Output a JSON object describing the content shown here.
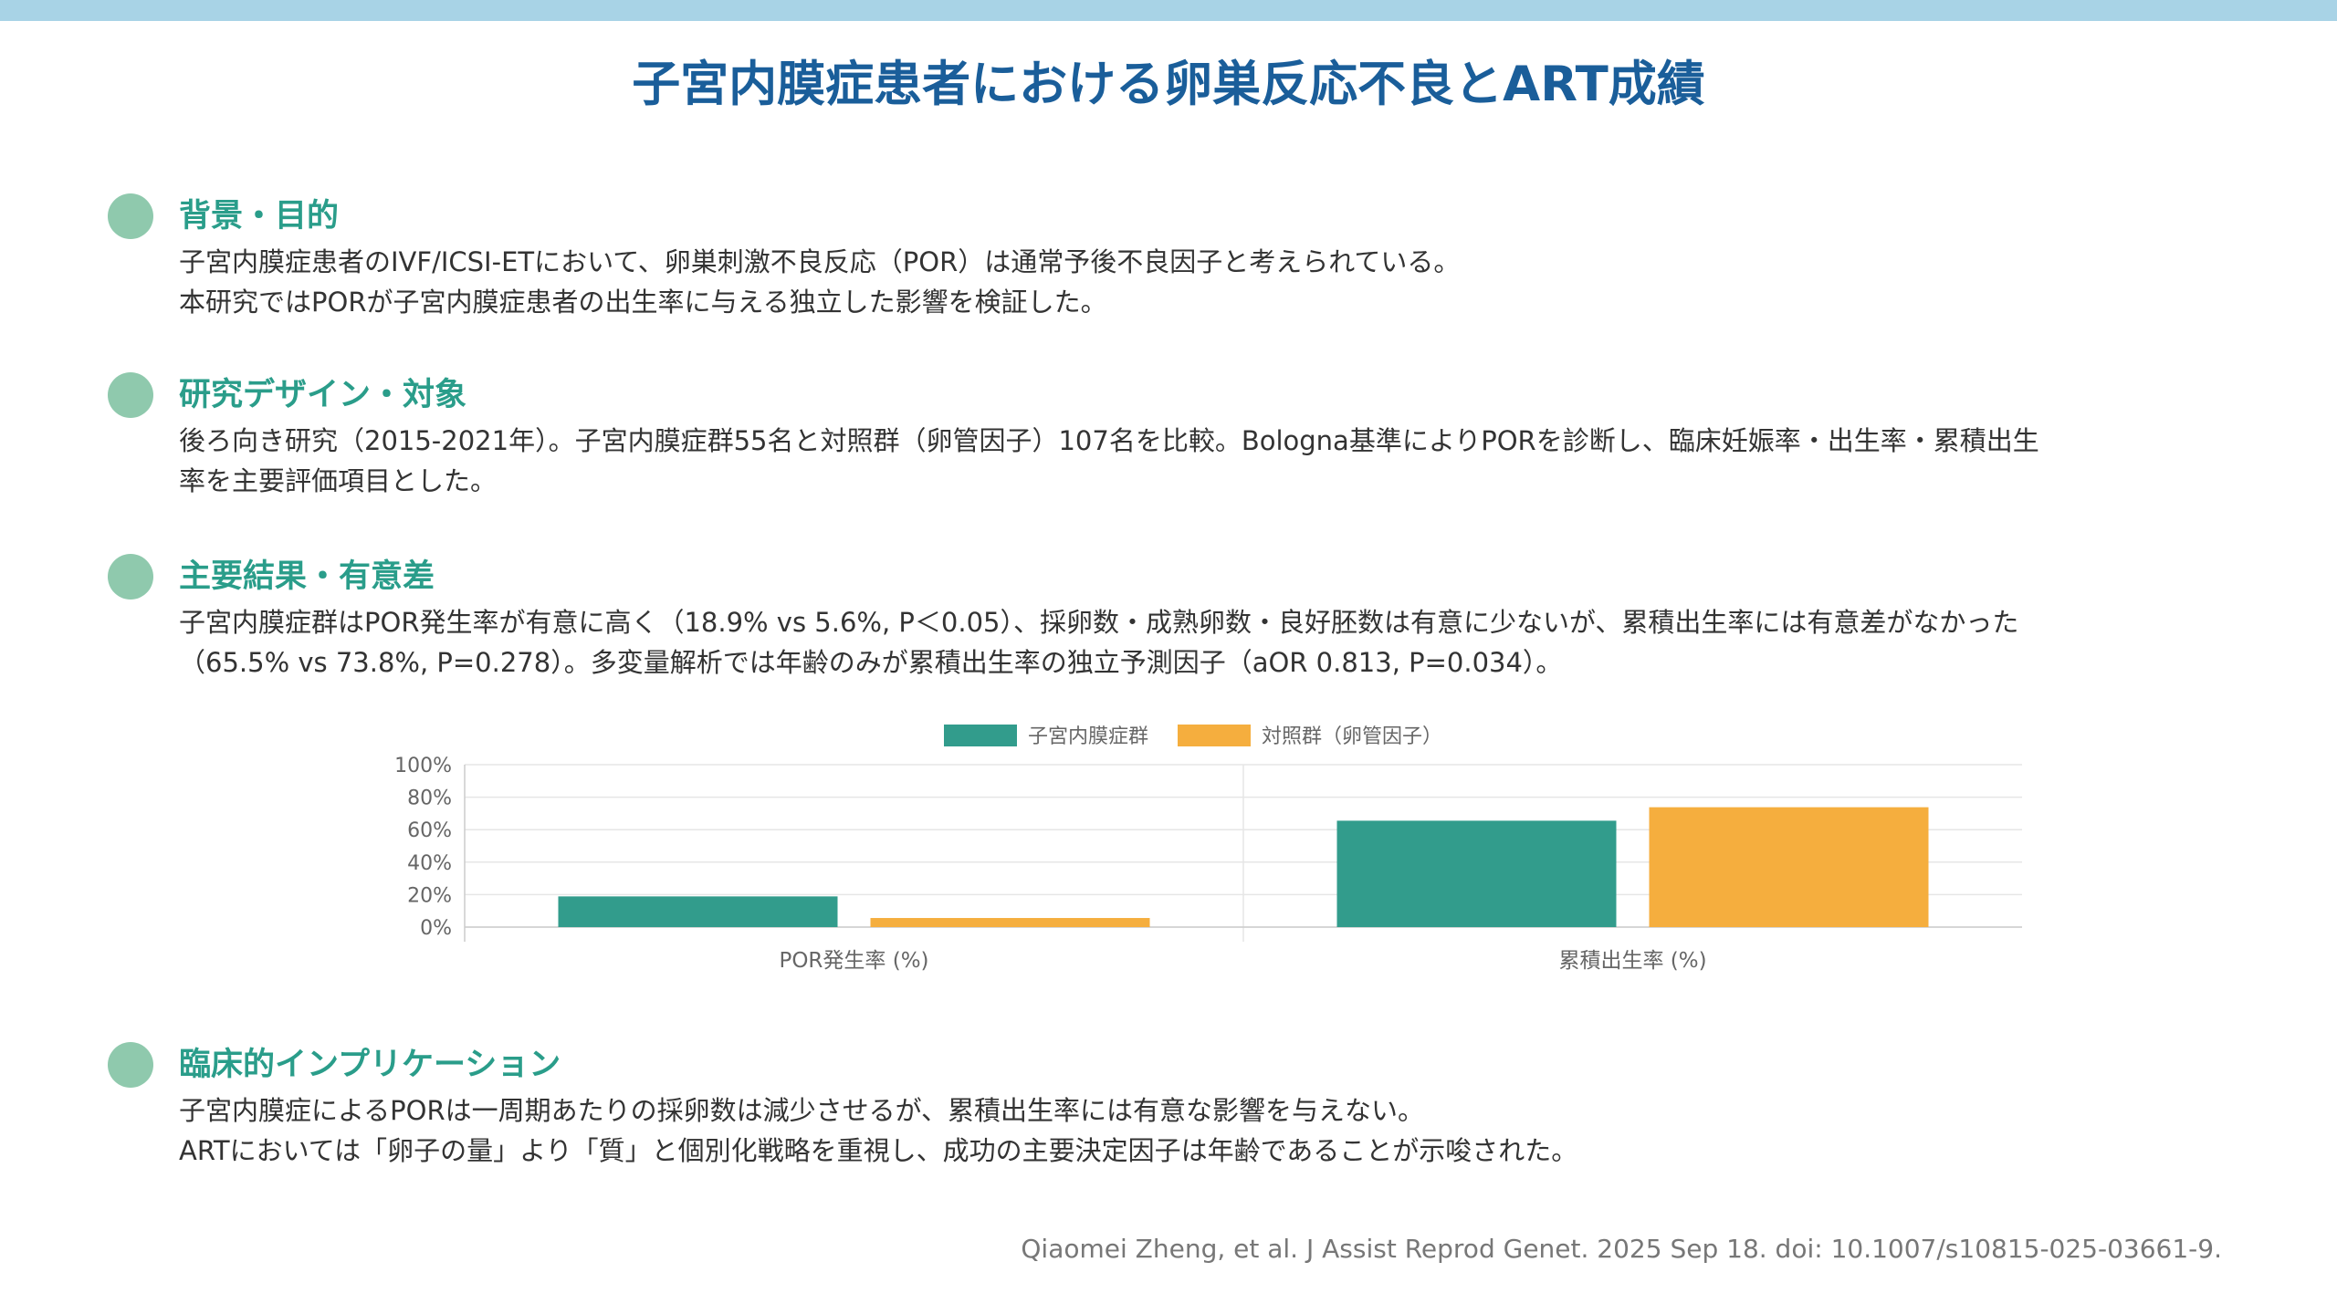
{
  "title": "子宮内膜症患者における卵巣反応不良とART成績",
  "sections": {
    "background": {
      "heading": "背景・目的",
      "lines": [
        "子宮内膜症患者のIVF/ICSI-ETにおいて、卵巣刺激不良反応（POR）は通常予後不良因子と考えられている。",
        "本研究ではPORが子宮内膜症患者の出生率に与える独立した影響を検証した。"
      ]
    },
    "design": {
      "heading": "研究デザイン・対象",
      "lines": [
        "後ろ向き研究（2015-2021年）。子宮内膜症群55名と対照群（卵管因子）107名を比較。Bologna基準によりPORを診断し、臨床妊娠率・出生率・累積出生",
        "率を主要評価項目とした。"
      ]
    },
    "results": {
      "heading": "主要結果・有意差",
      "lines": [
        "子宮内膜症群はPOR発生率が有意に高く（18.9% vs 5.6%, P＜0.05）、採卵数・成熟卵数・良好胚数は有意に少ないが、累積出生率には有意差がなかった",
        "（65.5% vs 73.8%, P=0.278）。多変量解析では年齢のみが累積出生率の独立予測因子（aOR 0.813, P=0.034）。"
      ]
    },
    "clinical": {
      "heading": "臨床的インプリケーション",
      "lines": [
        "子宮内膜症によるPORは一周期あたりの採卵数は減少させるが、累積出生率には有意な影響を与えない。",
        "ARTにおいては「卵子の量」より「質」と個別化戦略を重視し、成功の主要決定因子は年齢であることが示唆された。"
      ]
    }
  },
  "chart_data": {
    "type": "bar",
    "categories": [
      "POR発生率 (%)",
      "累積出生率 (%)"
    ],
    "series": [
      {
        "name": "子宮内膜症群",
        "values": [
          18.9,
          65.5
        ],
        "color": "#329c8c"
      },
      {
        "name": "対照群（卵管因子）",
        "values": [
          5.6,
          73.8
        ],
        "color": "#f5ae3e"
      }
    ],
    "ylim": [
      0,
      100
    ],
    "yticks": [
      "0%",
      "20%",
      "40%",
      "60%",
      "80%",
      "100%"
    ],
    "grid": true,
    "legend": "top-center"
  },
  "citation": "Qiaomei Zheng, et al. J Assist Reprod Genet. 2025 Sep 18.  doi: 10.1007/s10815-025-03661-9."
}
